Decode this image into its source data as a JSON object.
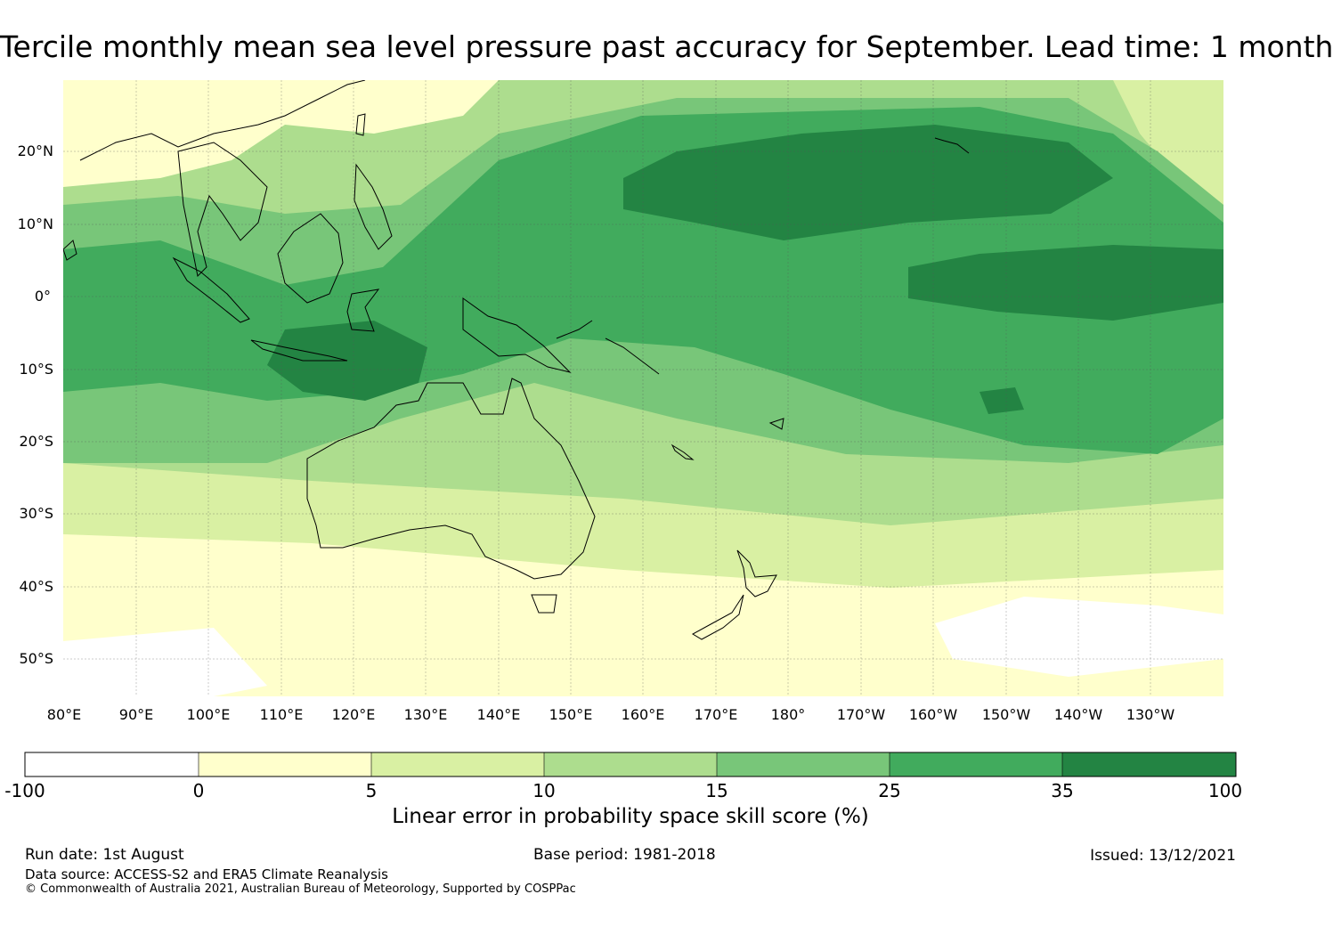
{
  "title": "Tercile monthly mean sea level pressure past accuracy for September. Lead time: 1 month",
  "map": {
    "lat_labels": [
      "20°N",
      "10°N",
      "0°",
      "10°S",
      "20°S",
      "30°S",
      "40°S",
      "50°S"
    ],
    "lon_labels": [
      "80°E",
      "90°E",
      "100°E",
      "110°E",
      "120°E",
      "130°E",
      "140°E",
      "150°E",
      "160°E",
      "170°E",
      "180°",
      "170°W",
      "160°W",
      "150°W",
      "140°W",
      "130°W"
    ]
  },
  "colorbar": {
    "ticks": [
      "-100",
      "0",
      "5",
      "10",
      "15",
      "25",
      "35",
      "100"
    ],
    "colors": [
      "#ffffff",
      "#ffffcc",
      "#d9f0a3",
      "#addd8e",
      "#78c679",
      "#41ab5d",
      "#238443"
    ],
    "label": "Linear error in probability space skill score (%)"
  },
  "footer": {
    "run_date": "Run date: 1st August",
    "base_period": "Base period: 1981-2018",
    "issued": "Issued: 13/12/2021",
    "data_source": "Data source: ACCESS-S2 and ERA5 Climate Reanalysis",
    "copyright": "© Commonwealth of Australia 2021, Australian Bureau of Meteorology, Supported by COSPPac"
  }
}
